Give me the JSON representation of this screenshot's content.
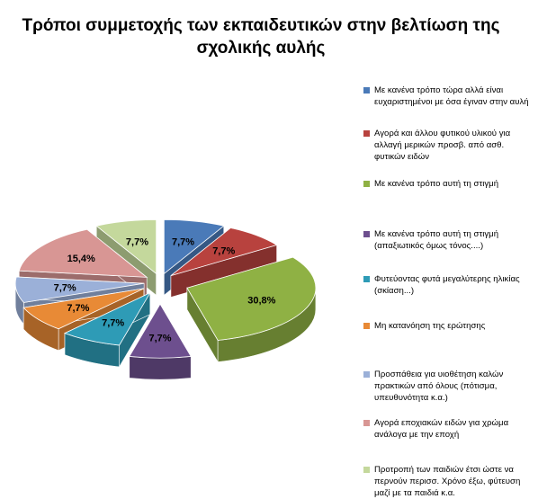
{
  "chart_data": {
    "type": "pie",
    "title": "Τρόποι συμμετοχής των εκπαιδευτικών στην βελτίωση της σχολικής αυλής",
    "slices": [
      {
        "label": "Με κανένα τρόπο τώρα αλλά είναι ευχαριστημένοι με όσα έγιναν στην αυλή",
        "value": 7.7,
        "data_label": "7,7%",
        "color": "#4a7ab8"
      },
      {
        "label": "Αγορά και άλλου φυτικού υλικού για αλλαγή μερικών προσβ. από ασθ. φυτικών ειδών",
        "value": 7.7,
        "data_label": "7,7%",
        "color": "#b8423e"
      },
      {
        "label": "Με κανένα τρόπο αυτή τη στιγμή",
        "value": 30.8,
        "data_label": "30,8%",
        "color": "#8fb144"
      },
      {
        "label": "Με κανένα τρόπο αυτή τη στιγμή (απαξιωτικός όμως τόνος....)",
        "value": 7.7,
        "data_label": "7,7%",
        "color": "#6d4f8e"
      },
      {
        "label": "Φυτεύοντας φυτά μεγαλύτερης ηλικίας (σκίαση...)",
        "value": 7.7,
        "data_label": "7,7%",
        "color": "#2e9bb6"
      },
      {
        "label": "Μη κατανόηση της ερώτησης",
        "value": 7.7,
        "data_label": "7,7%",
        "color": "#e88a36"
      },
      {
        "label": "Προσπάθεια για υιοθέτηση καλών πρακτικών από όλους (πότισμα, υπευθυνότητα κ.α.)",
        "value": 7.7,
        "data_label": "7,7%",
        "color": "#9bb0d8"
      },
      {
        "label": "Αγορά εποχιακών ειδών για χρώμα ανάλογα με την εποχή",
        "value": 15.4,
        "data_label": "15,4%",
        "color": "#d89694"
      },
      {
        "label": "Προτροπή των παιδιών έτσι ώστε να περνούν περισσ. Χρόνο έξω, φύτευση μαζί με τα παιδιά κ.α.",
        "value": 7.7,
        "data_label": "7,7%",
        "color": "#c4d89c"
      }
    ],
    "legend": {
      "position": "right",
      "entries": [
        "Με κανένα τρόπο τώρα αλλά είναι\nευχαριστημένοι με όσα έγιναν στην αυλή",
        "Αγορά και άλλου φυτικού υλικού για\nαλλαγή μερικών προσβ. από ασθ.\nφυτικών ειδών",
        "Με κανένα τρόπο αυτή τη στιγμή",
        "Με κανένα τρόπο αυτή τη στιγμή\n(απαξιωτικός όμως τόνος....)",
        "Φυτεύοντας φυτά μεγαλύτερης ηλικίας\n(σκίαση...)",
        "Μη κατανόηση της ερώτησης",
        "Προσπάθεια για υιοθέτηση καλών\nπρακτικών από όλους (πότισμα,\nυπευθυνότητα κ.α.)",
        "Αγορά εποχιακών ειδών για χρώμα\nανάλογα με την εποχή",
        "Προτροπή των παιδιών έτσι ώστε να\nπερνούν περισσ. Χρόνο έξω, φύτευση\nμαζί με τα παιδιά κ.α."
      ]
    },
    "style": "3d exploded pie"
  }
}
